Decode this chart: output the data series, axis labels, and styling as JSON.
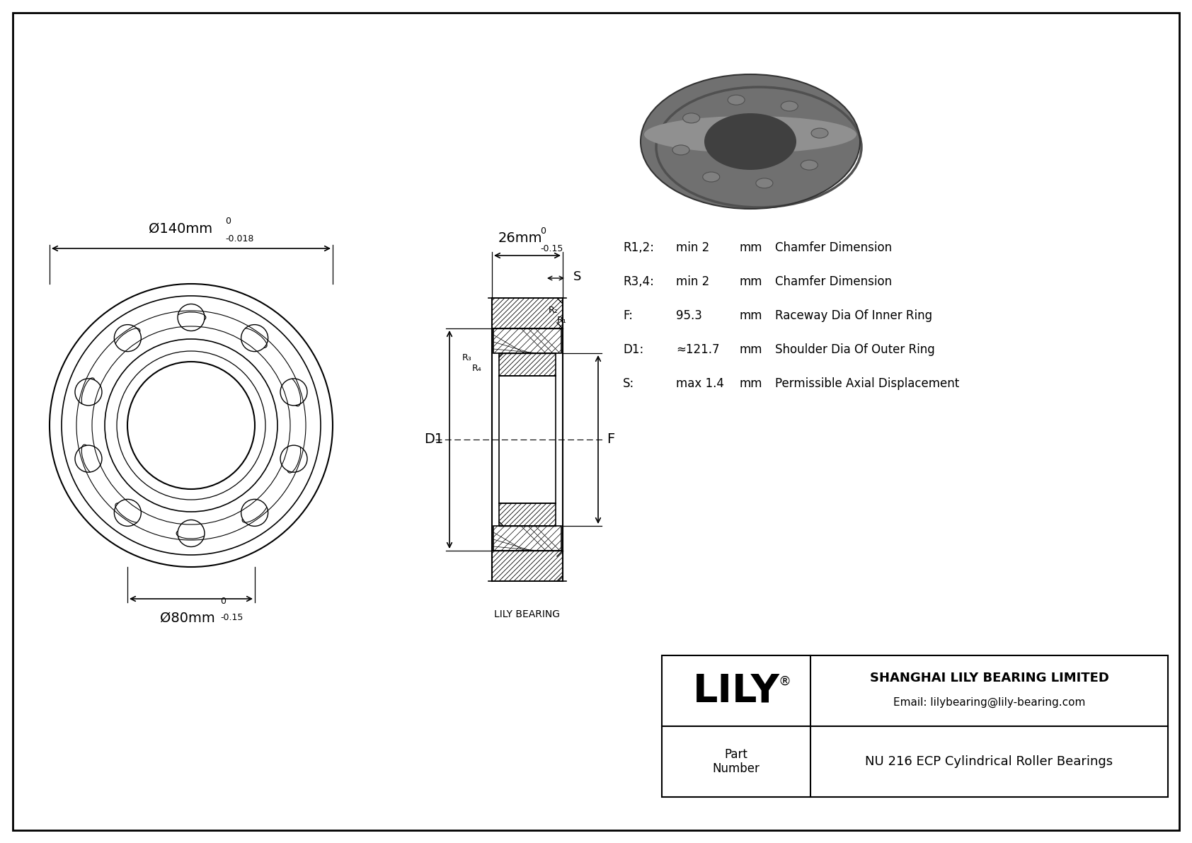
{
  "bg_color": "#ffffff",
  "border_color": "#000000",
  "line_color": "#000000",
  "title_company": "SHANGHAI LILY BEARING LIMITED",
  "title_email": "Email: lilybearing@lily-bearing.com",
  "part_label": "Part\nNumber",
  "part_number": "NU 216 ECP Cylindrical Roller Bearings",
  "logo_text": "LILY",
  "logo_sup": "®",
  "watermark": "LILY BEARING",
  "dim_outer": "Ø140mm",
  "dim_outer_tol_top": "0",
  "dim_outer_tol_bot": "-0.018",
  "dim_inner": "Ø80mm",
  "dim_inner_tol_top": "0",
  "dim_inner_tol_bot": "-0.15",
  "dim_width": "26mm",
  "dim_width_tol_top": "0",
  "dim_width_tol_bot": "-0.15",
  "param_R12_label": "R1,2:",
  "param_R12_val": "min 2",
  "param_R12_unit": "mm",
  "param_R12_desc": "Chamfer Dimension",
  "param_R34_label": "R3,4:",
  "param_R34_val": "min 2",
  "param_R34_unit": "mm",
  "param_R34_desc": "Chamfer Dimension",
  "param_F_label": "F:",
  "param_F_val": "95.3",
  "param_F_unit": "mm",
  "param_F_desc": "Raceway Dia Of Inner Ring",
  "param_D1_label": "D1:",
  "param_D1_val": "≈121.7",
  "param_D1_unit": "mm",
  "param_D1_desc": "Shoulder Dia Of Outer Ring",
  "param_S_label": "S:",
  "param_S_val": "max 1.4",
  "param_S_unit": "mm",
  "param_S_desc": "Permissible Axial Displacement"
}
